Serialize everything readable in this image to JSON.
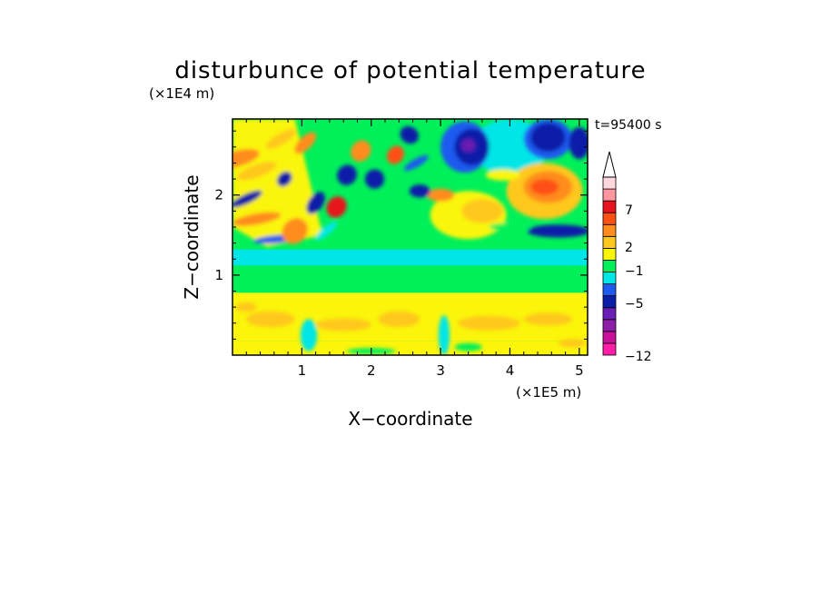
{
  "chart_data": {
    "type": "heatmap",
    "title": "disturbunce of potential temperature",
    "xlabel": "X−coordinate",
    "ylabel": "Z−coordinate",
    "x_unit": "(×1E5 m)",
    "y_unit": "(×1E4 m)",
    "time_label": "t=95400 s",
    "xlim": [
      0,
      5.12
    ],
    "ylim": [
      0,
      2.95
    ],
    "xticks": [
      "1",
      "2",
      "3",
      "4",
      "5"
    ],
    "yticks": [
      "1",
      "2"
    ],
    "colorbar": {
      "tick_labels": [
        "7",
        "2",
        "−1",
        "−5",
        "−12"
      ],
      "tick_values": [
        7,
        2,
        -1,
        -5,
        -12
      ],
      "colors": [
        "#ff1ea8",
        "#c8109a",
        "#8c1ea8",
        "#6a1eb4",
        "#0a1ea8",
        "#1e5af0",
        "#00e6e6",
        "#00f05a",
        "#faf50a",
        "#ffc81e",
        "#ff8c1e",
        "#ff5014",
        "#e6141e",
        "#ff96a0",
        "#ffd7dc"
      ],
      "extend": "max"
    },
    "colors": {
      "background": "#00f05a",
      "warm_band": "#faf50a",
      "cool_band": "#00e6e6",
      "strong_cold": "#0a1ea8",
      "strong_warm": "#ff5014"
    },
    "grid": false
  }
}
